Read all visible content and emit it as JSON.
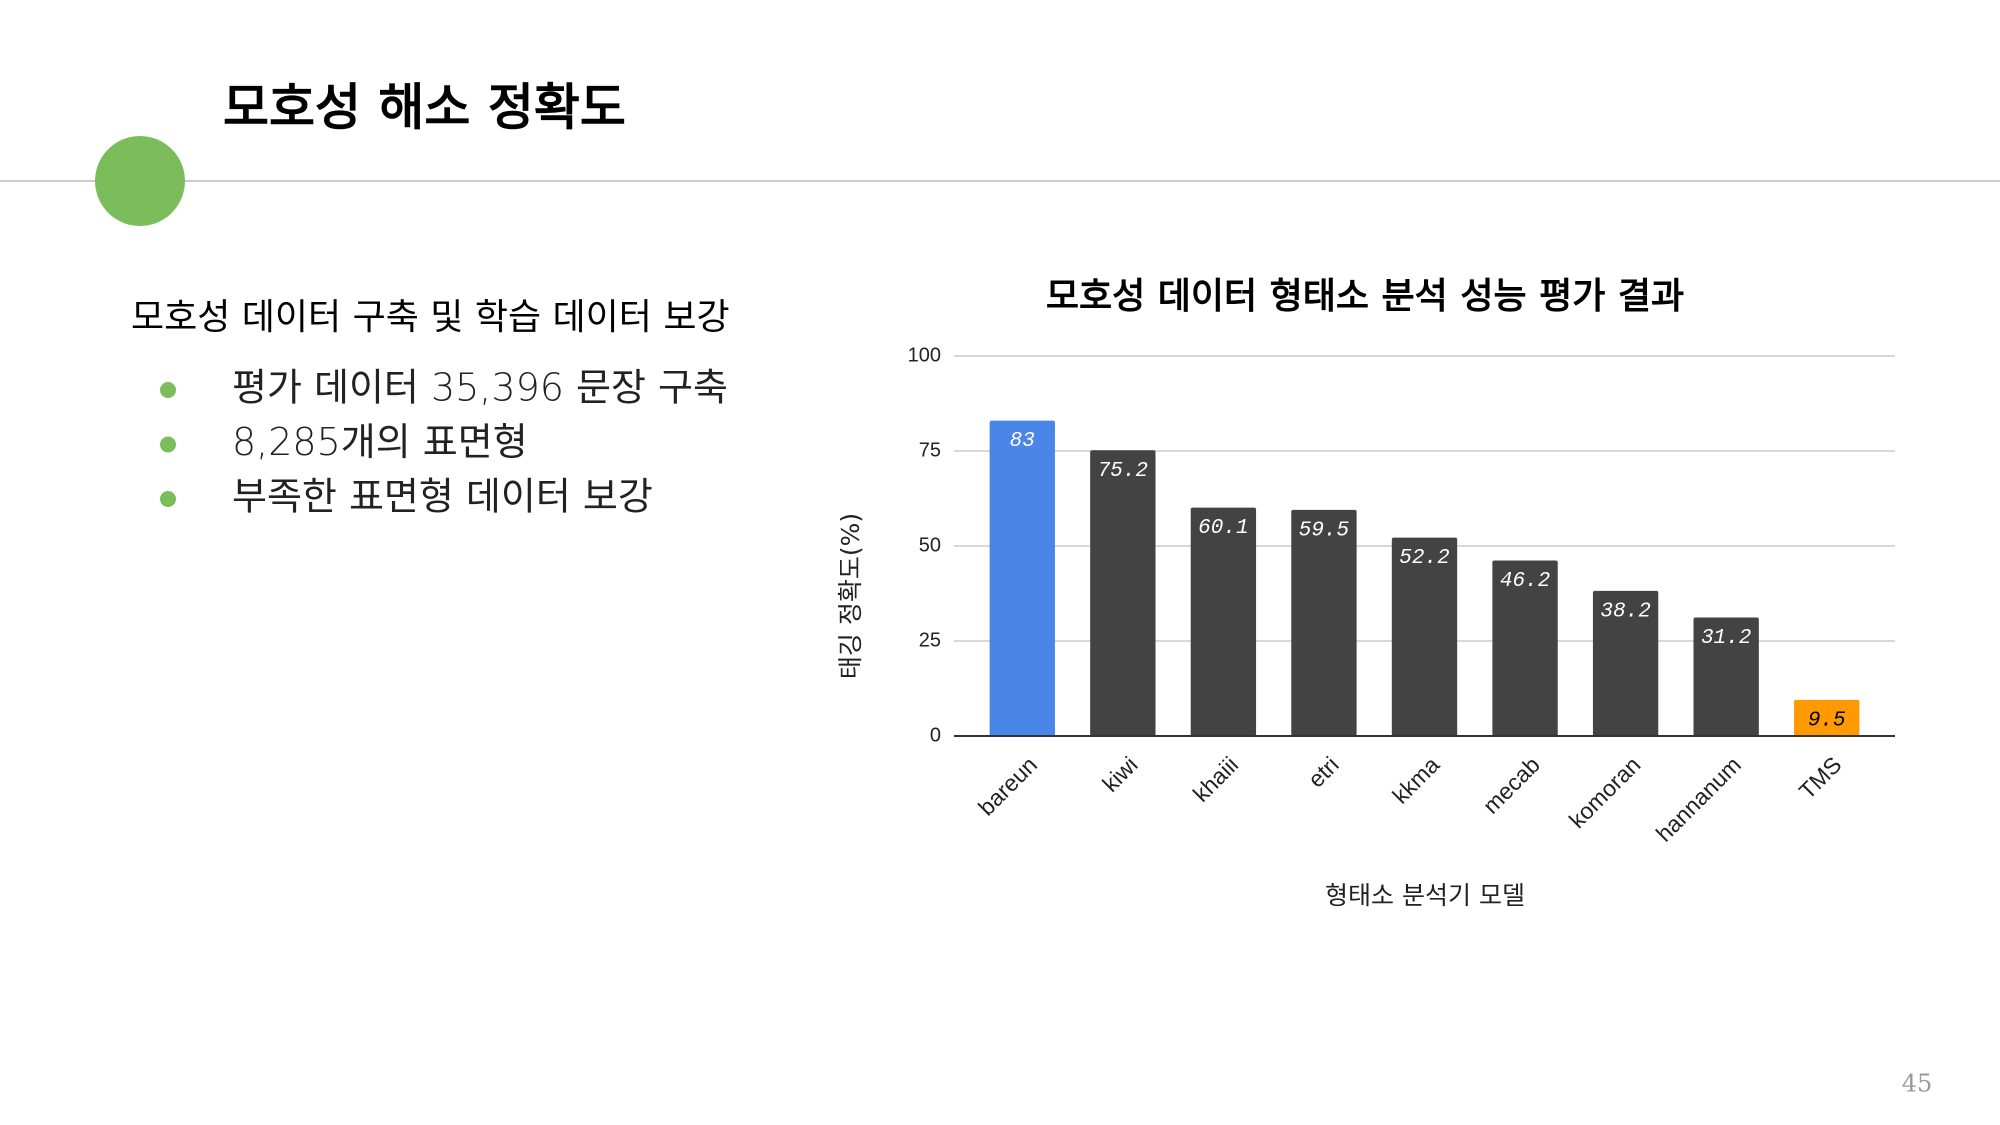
{
  "slide": {
    "title": "모호성 해소 정확도",
    "subtitle": "모호성 데이터 구축 및 학습 데이터 보강",
    "bullets": [
      "평가 데이터 35,396 문장 구축",
      "8,285개의 표면형",
      "부족한 표면형 데이터 보강"
    ],
    "page_number": "45"
  },
  "chart_data": {
    "type": "bar",
    "title": "모호성 데이터 형태소 분석 성능 평가 결과",
    "x_label": "형태소 분석기 모델",
    "y_label": "태깅 정확도(%)",
    "categories": [
      "bareun",
      "kiwi",
      "khaiii",
      "etri",
      "kkma",
      "mecab",
      "komoran",
      "hannanum",
      "TMS"
    ],
    "values": [
      83,
      75.2,
      60.1,
      59.5,
      52.2,
      46.2,
      38.2,
      31.2,
      9.5
    ],
    "colors": [
      "#4a86e8",
      "#434343",
      "#434343",
      "#434343",
      "#434343",
      "#434343",
      "#434343",
      "#434343",
      "#ff9900"
    ],
    "ylim": [
      0,
      100
    ],
    "yticks": [
      0,
      25,
      50,
      75,
      100
    ],
    "grid": true
  }
}
